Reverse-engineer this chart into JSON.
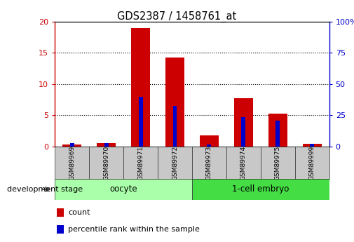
{
  "title": "GDS2387 / 1458761_at",
  "samples": [
    "GSM89969",
    "GSM89970",
    "GSM89971",
    "GSM89972",
    "GSM89973",
    "GSM89974",
    "GSM89975",
    "GSM89999"
  ],
  "counts": [
    0.3,
    0.5,
    19.0,
    14.3,
    1.8,
    7.7,
    5.3,
    0.4
  ],
  "percentiles": [
    2.5,
    2.5,
    40.0,
    32.5,
    1.5,
    23.5,
    20.5,
    2.0
  ],
  "groups": [
    {
      "label": "oocyte",
      "start": 0,
      "end": 3,
      "color": "#aaffaa"
    },
    {
      "label": "1-cell embryo",
      "start": 4,
      "end": 7,
      "color": "#44dd44"
    }
  ],
  "ylim_left": [
    0,
    20
  ],
  "ylim_right": [
    0,
    100
  ],
  "yticks_left": [
    0,
    5,
    10,
    15,
    20
  ],
  "yticks_right": [
    0,
    25,
    50,
    75,
    100
  ],
  "count_color": "#cc0000",
  "percentile_color": "#0000cc",
  "legend_count_label": "count",
  "legend_percentile_label": "percentile rank within the sample",
  "dev_stage_label": "development stage",
  "tick_label_bg": "#c8c8c8"
}
